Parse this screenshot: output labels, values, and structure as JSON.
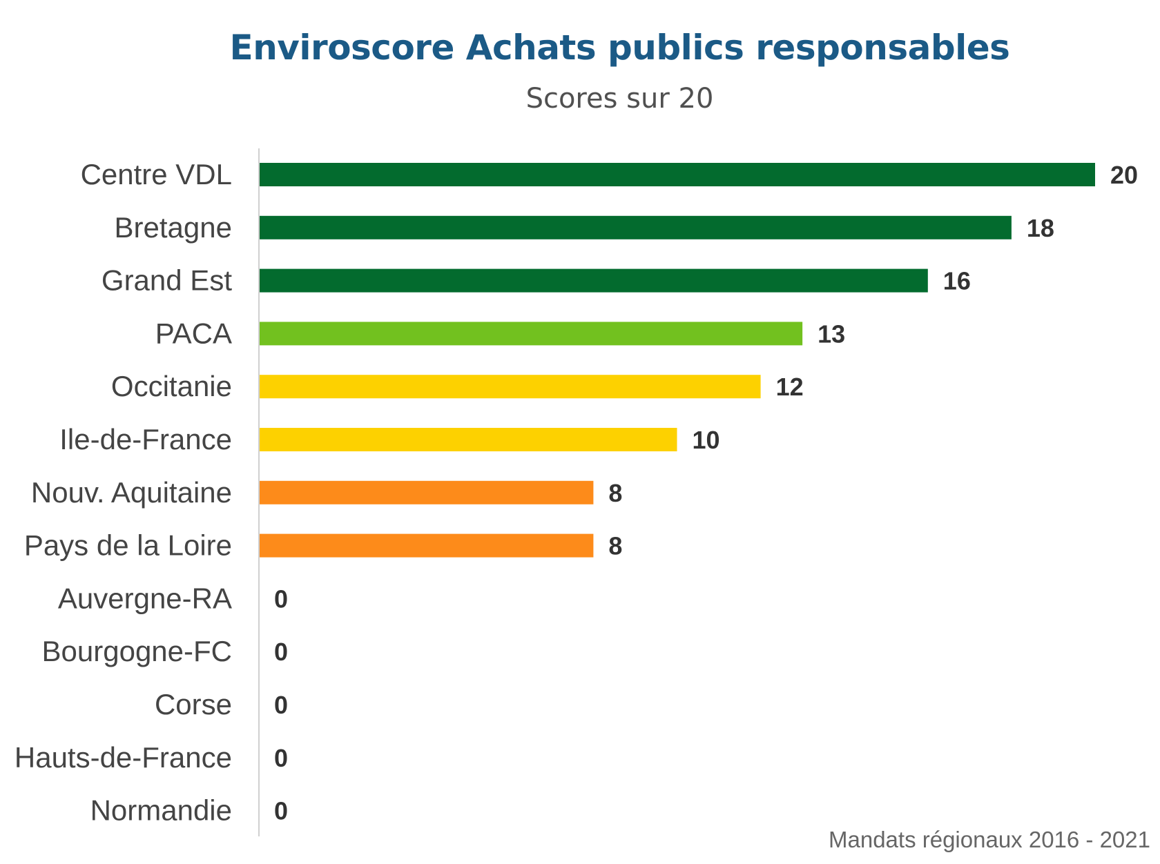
{
  "chart_data": {
    "type": "bar",
    "orientation": "horizontal",
    "title": "Enviroscore Achats publics responsables",
    "subtitle": "Scores sur 20",
    "footnote": "Mandats régionaux 2016 - 2021",
    "categories": [
      "Centre VDL",
      "Bretagne",
      "Grand Est",
      "PACA",
      "Occitanie",
      "Ile-de-France",
      "Nouv. Aquitaine",
      "Pays de la Loire",
      "Auvergne-RA",
      "Bourgogne-FC",
      "Corse",
      "Hauts-de-France",
      "Normandie"
    ],
    "values": [
      20,
      18,
      16,
      13,
      12,
      10,
      8,
      8,
      0,
      0,
      0,
      0,
      0
    ],
    "colors": [
      "#036b2e",
      "#036b2e",
      "#036b2e",
      "#72c11f",
      "#fdd100",
      "#fdd100",
      "#fd8b1a",
      "#fd8b1a",
      "#fd8b1a",
      "#fd8b1a",
      "#fd8b1a",
      "#fd8b1a",
      "#fd8b1a"
    ],
    "xlim": [
      0,
      20
    ],
    "grid": false,
    "data_labels": true
  }
}
